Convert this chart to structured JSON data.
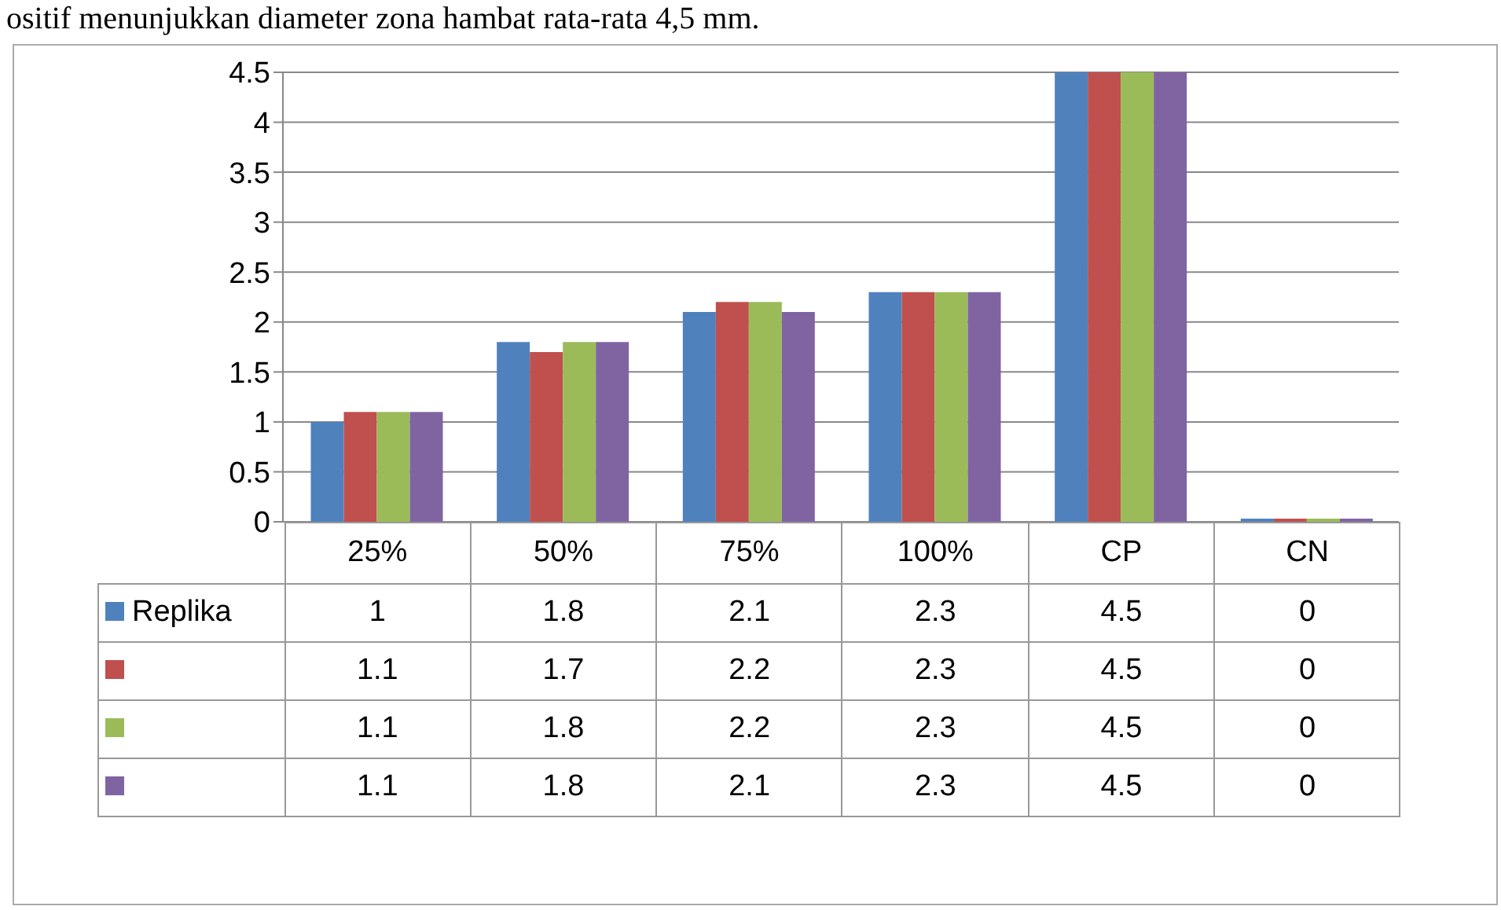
{
  "chart_data": {
    "type": "bar",
    "annotations": [
      "ositif menunjukkan diameter zona hambat rata-rata 4,5 mm."
    ],
    "categories": [
      "25%",
      "50%",
      "75%",
      "100%",
      "CP",
      "CN"
    ],
    "series": [
      {
        "name": "Replika",
        "color": "#4f81bd",
        "values": [
          1,
          1.8,
          2.1,
          2.3,
          4.5,
          0
        ]
      },
      {
        "color": "#c0504d",
        "values": [
          1.1,
          1.7,
          2.2,
          2.3,
          4.5,
          0
        ]
      },
      {
        "color": "#9bbb59",
        "values": [
          1.1,
          1.8,
          2.2,
          2.3,
          4.5,
          0
        ]
      },
      {
        "color": "#8064a2",
        "values": [
          1.1,
          1.8,
          2.1,
          2.3,
          4.5,
          0
        ]
      }
    ],
    "ylim": [
      0,
      4.5
    ],
    "yticks": [
      0,
      0.5,
      1,
      1.5,
      2,
      2.5,
      3,
      3.5,
      4,
      4.5
    ],
    "grid": "y",
    "legend": "bottom",
    "data_labels": true
  }
}
